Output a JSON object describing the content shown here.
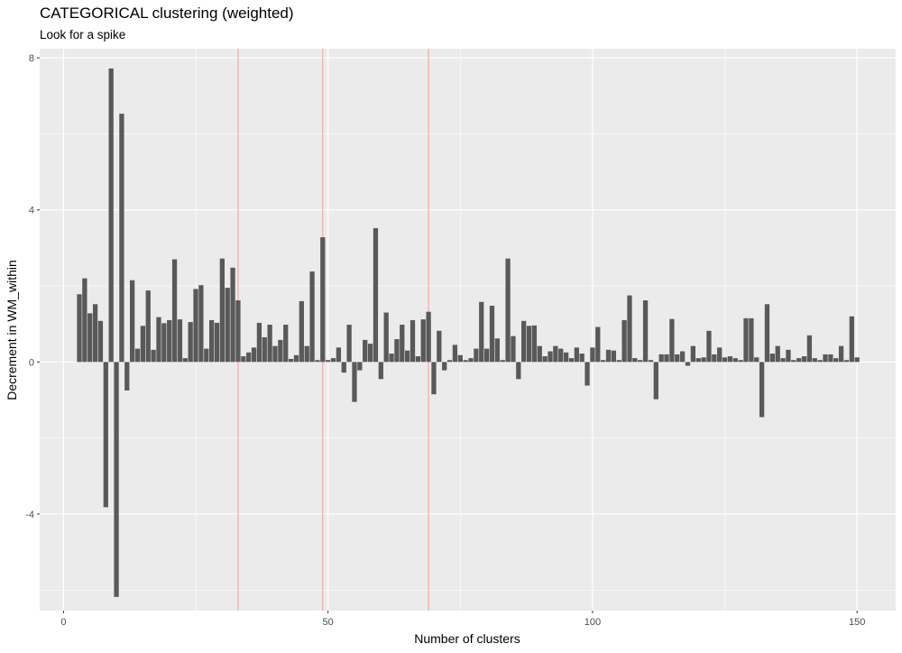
{
  "chart_data": {
    "type": "bar",
    "title": "CATEGORICAL clustering (weighted)",
    "subtitle": "Look for a spike",
    "xlabel": "Number of clusters",
    "ylabel": "Decrement in WM_within",
    "xlim": [
      -4.5,
      157.3
    ],
    "ylim": [
      -6.54,
      8.24
    ],
    "x_ticks": [
      0,
      50,
      100,
      150
    ],
    "x_tick_labels": [
      "0",
      "50",
      "100",
      "150"
    ],
    "y_ticks": [
      -4,
      0,
      4,
      8
    ],
    "y_tick_labels": [
      "-4",
      "0",
      "4",
      "8"
    ],
    "grid": true,
    "legend": "none",
    "vlines": [
      33,
      49,
      69
    ],
    "colors": {
      "panel_background": "#ebebeb",
      "grid": "#ffffff",
      "bar": "#595959",
      "vline": "#f4a9a0"
    },
    "x": [
      3,
      4,
      5,
      6,
      7,
      8,
      9,
      10,
      11,
      12,
      13,
      14,
      15,
      16,
      17,
      18,
      19,
      20,
      21,
      22,
      23,
      24,
      25,
      26,
      27,
      28,
      29,
      30,
      31,
      32,
      33,
      34,
      35,
      36,
      37,
      38,
      39,
      40,
      41,
      42,
      43,
      44,
      45,
      46,
      47,
      48,
      49,
      50,
      51,
      52,
      53,
      54,
      55,
      56,
      57,
      58,
      59,
      60,
      61,
      62,
      63,
      64,
      65,
      66,
      67,
      68,
      69,
      70,
      71,
      72,
      73,
      74,
      75,
      76,
      77,
      78,
      79,
      80,
      81,
      82,
      83,
      84,
      85,
      86,
      87,
      88,
      89,
      90,
      91,
      92,
      93,
      94,
      95,
      96,
      97,
      98,
      99,
      100,
      101,
      102,
      103,
      104,
      105,
      106,
      107,
      108,
      109,
      110,
      111,
      112,
      113,
      114,
      115,
      116,
      117,
      118,
      119,
      120,
      121,
      122,
      123,
      124,
      125,
      126,
      127,
      128,
      129,
      130,
      131,
      132,
      133,
      134,
      135,
      136,
      137,
      138,
      139,
      140,
      141,
      142,
      143,
      144,
      145,
      146,
      147,
      148,
      149,
      150
    ],
    "values": [
      1.78,
      2.2,
      1.28,
      1.52,
      1.08,
      -3.82,
      7.72,
      -6.18,
      6.53,
      -0.75,
      2.15,
      0.35,
      0.95,
      1.88,
      0.32,
      1.18,
      1.02,
      1.1,
      2.7,
      1.12,
      0.1,
      1.05,
      1.92,
      2.02,
      0.35,
      1.1,
      1.03,
      2.72,
      1.95,
      2.48,
      1.62,
      0.15,
      0.25,
      0.38,
      1.03,
      0.65,
      0.98,
      0.42,
      0.58,
      0.98,
      0.08,
      0.18,
      1.6,
      0.42,
      2.38,
      0.05,
      3.28,
      0.05,
      0.1,
      0.38,
      -0.28,
      0.98,
      -1.05,
      -0.22,
      0.58,
      0.48,
      3.52,
      -0.45,
      1.3,
      0.22,
      0.6,
      0.98,
      0.3,
      1.1,
      0.15,
      1.12,
      1.32,
      -0.85,
      0.82,
      -0.22,
      0.05,
      0.45,
      0.18,
      0.05,
      0.1,
      0.35,
      1.58,
      0.35,
      1.48,
      0.62,
      0.05,
      2.72,
      0.68,
      -0.45,
      1.08,
      0.95,
      0.96,
      0.42,
      0.15,
      0.28,
      0.42,
      0.35,
      0.25,
      0.1,
      0.38,
      0.22,
      -0.62,
      0.38,
      0.92,
      0.05,
      0.32,
      0.3,
      0.05,
      1.1,
      1.75,
      0.1,
      0.05,
      1.62,
      0.05,
      -0.98,
      0.2,
      0.2,
      1.13,
      0.2,
      0.28,
      -0.1,
      0.42,
      0.1,
      0.12,
      0.82,
      0.2,
      0.38,
      0.12,
      0.15,
      0.1,
      0.05,
      1.15,
      1.15,
      0.12,
      -1.45,
      1.52,
      0.22,
      0.42,
      0.1,
      0.32,
      0.05,
      0.1,
      0.15,
      0.7,
      0.1,
      0.05,
      0.2,
      0.2,
      0.1,
      0.42,
      0.05,
      1.2,
      0.12
    ]
  }
}
